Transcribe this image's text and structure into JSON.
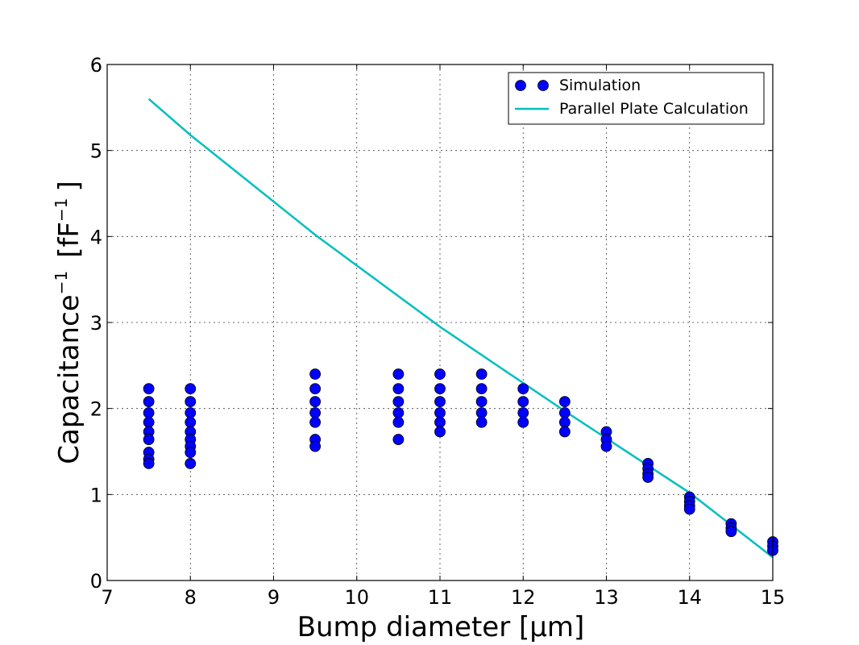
{
  "chart_data": {
    "type": "scatter",
    "xlabel": "Bump diameter [μm]",
    "ylabel_main": "Capacitance",
    "ylabel_sup": "−1",
    "ylabel_unit_open": "[fF",
    "ylabel_unit_close": "]",
    "xlim": [
      7,
      15
    ],
    "ylim": [
      0,
      6
    ],
    "xticks": [
      "7",
      "8",
      "9",
      "10",
      "11",
      "12",
      "13",
      "14",
      "15"
    ],
    "yticks": [
      "0",
      "1",
      "2",
      "3",
      "4",
      "5",
      "6"
    ],
    "grid": true,
    "legend_position": "top-right",
    "series": [
      {
        "name": "Simulation",
        "kind": "markers",
        "color": "#0000ff",
        "points": [
          [
            7.5,
            2.23
          ],
          [
            7.5,
            2.08
          ],
          [
            7.5,
            1.95
          ],
          [
            7.5,
            1.84
          ],
          [
            7.5,
            1.73
          ],
          [
            7.5,
            1.64
          ],
          [
            7.5,
            1.49
          ],
          [
            7.5,
            1.41
          ],
          [
            7.5,
            1.36
          ],
          [
            8.0,
            2.23
          ],
          [
            8.0,
            2.08
          ],
          [
            8.0,
            1.95
          ],
          [
            8.0,
            1.84
          ],
          [
            8.0,
            1.73
          ],
          [
            8.0,
            1.64
          ],
          [
            8.0,
            1.56
          ],
          [
            8.0,
            1.49
          ],
          [
            8.0,
            1.36
          ],
          [
            9.5,
            2.4
          ],
          [
            9.5,
            2.23
          ],
          [
            9.5,
            2.08
          ],
          [
            9.5,
            1.95
          ],
          [
            9.5,
            1.84
          ],
          [
            9.5,
            1.64
          ],
          [
            9.5,
            1.56
          ],
          [
            10.5,
            2.4
          ],
          [
            10.5,
            2.23
          ],
          [
            10.5,
            2.08
          ],
          [
            10.5,
            1.95
          ],
          [
            10.5,
            1.84
          ],
          [
            10.5,
            1.64
          ],
          [
            11.0,
            2.4
          ],
          [
            11.0,
            2.23
          ],
          [
            11.0,
            2.08
          ],
          [
            11.0,
            1.95
          ],
          [
            11.0,
            1.84
          ],
          [
            11.0,
            1.73
          ],
          [
            11.5,
            2.4
          ],
          [
            11.5,
            2.23
          ],
          [
            11.5,
            2.08
          ],
          [
            11.5,
            1.95
          ],
          [
            11.5,
            1.84
          ],
          [
            12.0,
            2.23
          ],
          [
            12.0,
            2.08
          ],
          [
            12.0,
            1.95
          ],
          [
            12.0,
            1.84
          ],
          [
            12.5,
            2.08
          ],
          [
            12.5,
            1.95
          ],
          [
            12.5,
            1.84
          ],
          [
            12.5,
            1.73
          ],
          [
            13.0,
            1.73
          ],
          [
            13.0,
            1.64
          ],
          [
            13.0,
            1.56
          ],
          [
            13.5,
            1.36
          ],
          [
            13.5,
            1.3
          ],
          [
            13.5,
            1.24
          ],
          [
            13.5,
            1.2
          ],
          [
            14.0,
            0.97
          ],
          [
            14.0,
            0.92
          ],
          [
            14.0,
            0.87
          ],
          [
            14.0,
            0.83
          ],
          [
            14.5,
            0.66
          ],
          [
            14.5,
            0.61
          ],
          [
            14.5,
            0.57
          ],
          [
            15.0,
            0.45
          ],
          [
            15.0,
            0.4
          ],
          [
            15.0,
            0.35
          ]
        ]
      },
      {
        "name": "Parallel Plate Calculation",
        "kind": "line",
        "color": "#00bfbf",
        "points": [
          [
            7.5,
            5.6
          ],
          [
            8.0,
            5.18
          ],
          [
            9.5,
            4.02
          ],
          [
            11.0,
            2.95
          ],
          [
            12.5,
            1.97
          ],
          [
            14.0,
            1.02
          ],
          [
            15.0,
            0.27
          ]
        ]
      }
    ]
  }
}
